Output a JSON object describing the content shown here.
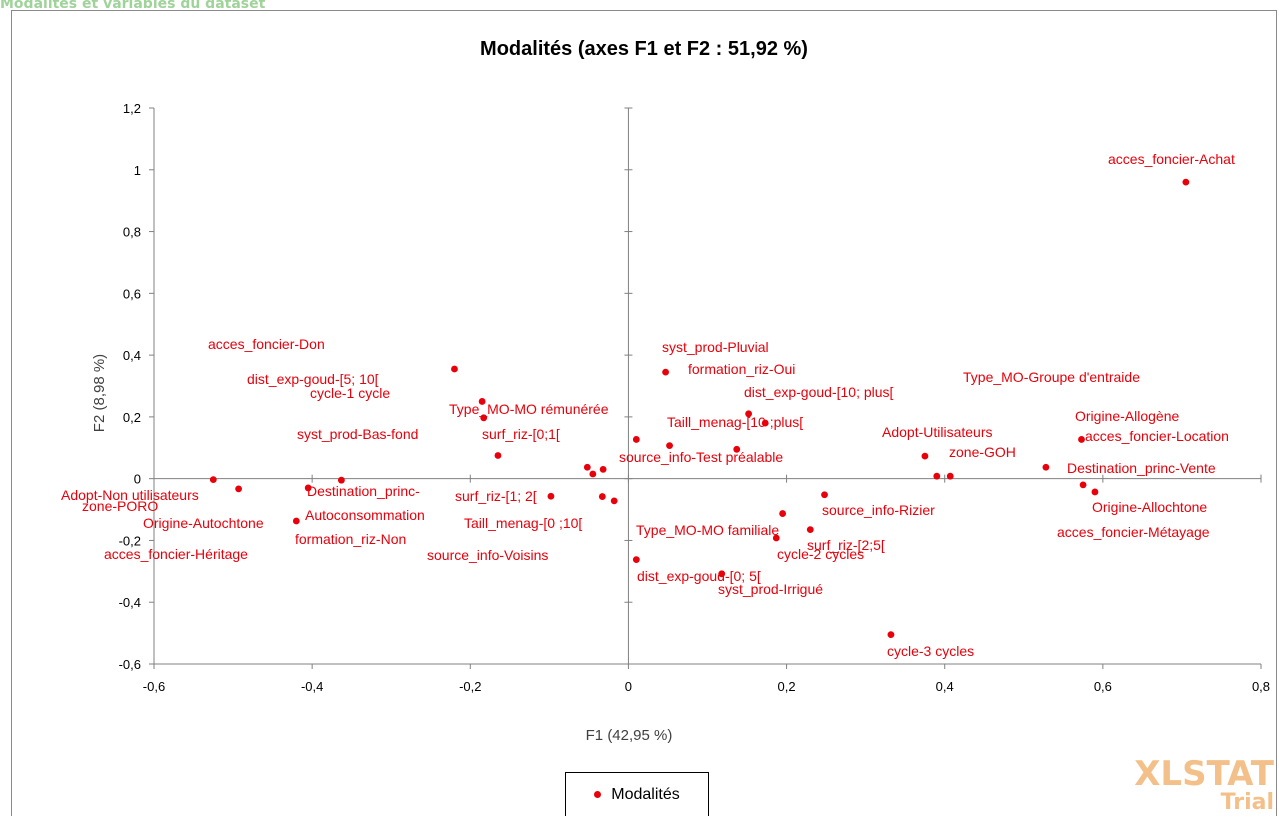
{
  "header_fragment": "Modalités   et variables   du  dataset",
  "watermark": {
    "main": "XLSTAT",
    "sub": "Trial"
  },
  "legend": {
    "label": "Modalités"
  },
  "colors": {
    "points": "#e8000b",
    "axis": "#808080",
    "watermark": "#f3c08a"
  },
  "chart_data": {
    "type": "scatter",
    "title": "Modalités (axes F1 et F2 : 51,92 %)",
    "xlabel": "F1 (42,95 %)",
    "ylabel": "F2 (8,98 %)",
    "xlim": [
      -0.6,
      0.8
    ],
    "ylim": [
      -0.6,
      1.2
    ],
    "xticks": [
      -0.6,
      -0.4,
      -0.2,
      0,
      0.2,
      0.4,
      0.6,
      0.8
    ],
    "xtick_labels": [
      "-0,6",
      "-0,4",
      "-0,2",
      "0",
      "0,2",
      "0,4",
      "0,6",
      "0,8"
    ],
    "yticks": [
      -0.6,
      -0.4,
      -0.2,
      0,
      0.2,
      0.4,
      0.6,
      0.8,
      1,
      1.2
    ],
    "ytick_labels": [
      "-0,6",
      "-0,4",
      "-0,2",
      "0",
      "0,2",
      "0,4",
      "0,6",
      "0,8",
      "1",
      "1,2"
    ],
    "grid": false,
    "legend_position": "bottom",
    "series": [
      {
        "name": "Modalités",
        "points": [
          {
            "x": 0.705,
            "y": 0.96,
            "label": "acces_foncier-Achat"
          },
          {
            "x": -0.22,
            "y": 0.355,
            "label": "acces_foncier-Don"
          },
          {
            "x": -0.185,
            "y": 0.25,
            "label": "dist_exp-goud-[5; 10["
          },
          {
            "x": -0.183,
            "y": 0.197,
            "label": "cycle-1 cycle"
          },
          {
            "x": -0.165,
            "y": 0.075,
            "label": "Type_MO-MO rémunérée"
          },
          {
            "x": 0.047,
            "y": 0.345,
            "label": "syst_prod-Pluvial"
          },
          {
            "x": 0.052,
            "y": 0.107,
            "label": "formation_riz-Oui"
          },
          {
            "x": 0.152,
            "y": 0.21,
            "label": "dist_exp-goud-[10; plus["
          },
          {
            "x": 0.173,
            "y": 0.18,
            "label": "Taill_menag-[10 ;plus["
          },
          {
            "x": 0.137,
            "y": 0.095,
            "label": "source_info-Test préalable"
          },
          {
            "x": 0.01,
            "y": 0.127,
            "label": "syst_prod-Bas-fond"
          },
          {
            "x": -0.052,
            "y": 0.037,
            "label": "surf_riz-[0;1["
          },
          {
            "x": -0.045,
            "y": 0.015,
            "label": ""
          },
          {
            "x": -0.032,
            "y": 0.03,
            "label": ""
          },
          {
            "x": -0.525,
            "y": -0.003,
            "label": "Adopt-Non utilisateurs"
          },
          {
            "x": -0.493,
            "y": -0.033,
            "label": "zone-PORO"
          },
          {
            "x": -0.42,
            "y": -0.137,
            "label": "Origine-Autochtone"
          },
          {
            "x": -0.405,
            "y": -0.03,
            "label": "Destination_princ-"
          },
          {
            "x": -0.363,
            "y": -0.005,
            "label": "Autoconsommation"
          },
          {
            "x": -0.098,
            "y": -0.057,
            "label": "surf_riz-[1; 2["
          },
          {
            "x": -0.033,
            "y": -0.058,
            "label": "Taill_menag-[0 ;10["
          },
          {
            "x": -0.018,
            "y": -0.072,
            "label": "source_info-Voisins"
          },
          {
            "x": 0.375,
            "y": 0.073,
            "label": "Adopt-Utilisateurs"
          },
          {
            "x": 0.39,
            "y": 0.008,
            "label": "zone-GOH"
          },
          {
            "x": 0.407,
            "y": 0.008,
            "label": ""
          },
          {
            "x": 0.528,
            "y": 0.037,
            "label": "Type_MO-Groupe d'entraide"
          },
          {
            "x": 0.573,
            "y": 0.127,
            "label": "Origine-Allogène"
          },
          {
            "x": 0.575,
            "y": -0.02,
            "label": "acces_foncier-Location"
          },
          {
            "x": 0.59,
            "y": -0.043,
            "label": "Destination_princ-Vente"
          },
          {
            "x": 0.248,
            "y": -0.052,
            "label": "source_info-Rizier"
          },
          {
            "x": 0.195,
            "y": -0.113,
            "label": "surf_riz-[2;5["
          },
          {
            "x": 0.23,
            "y": -0.165,
            "label": "cycle-2 cycles"
          },
          {
            "x": 0.187,
            "y": -0.192,
            "label": "Type_MO-MO familiale"
          },
          {
            "x": 0.01,
            "y": -0.262,
            "label": "dist_exp-goud-[0; 5["
          },
          {
            "x": 0.118,
            "y": -0.308,
            "label": "syst_prod-Irrigué"
          },
          {
            "x": 0.332,
            "y": -0.505,
            "label": "cycle-3 cycles"
          },
          {
            "x": 0,
            "y": 0,
            "label": "Origine-Allochtone"
          },
          {
            "x": 0,
            "y": 0,
            "label": "acces_foncier-Métayage"
          },
          {
            "x": 0,
            "y": 0,
            "label": "acces_foncier-Héritage"
          },
          {
            "x": 0,
            "y": 0,
            "label": "formation_riz-Non"
          }
        ]
      }
    ]
  }
}
